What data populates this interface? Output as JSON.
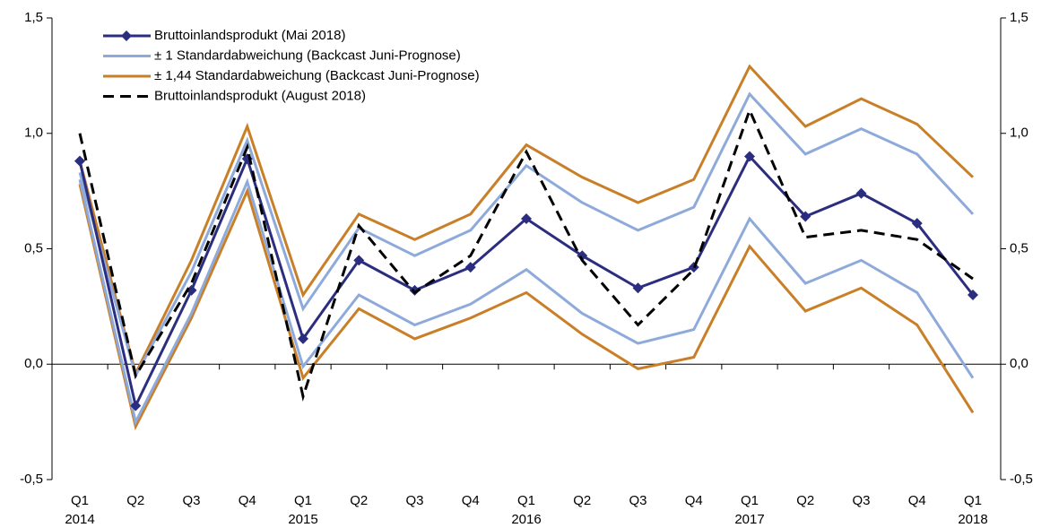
{
  "chart_data": {
    "type": "line",
    "categories": [
      "Q1",
      "Q2",
      "Q3",
      "Q4",
      "Q1",
      "Q2",
      "Q3",
      "Q4",
      "Q1",
      "Q2",
      "Q3",
      "Q4",
      "Q1",
      "Q2",
      "Q3",
      "Q4",
      "Q1"
    ],
    "year_labels": [
      "2014",
      null,
      null,
      null,
      "2015",
      null,
      null,
      null,
      "2016",
      null,
      null,
      null,
      "2017",
      null,
      null,
      null,
      "2018"
    ],
    "ylim": [
      -0.5,
      1.5
    ],
    "yticks": [
      {
        "value": -0.5,
        "label": "-0,5"
      },
      {
        "value": 0,
        "label": "0,0"
      },
      {
        "value": 0.5,
        "label": "0,5"
      },
      {
        "value": 1,
        "label": "1,0"
      },
      {
        "value": 1.5,
        "label": "1,5"
      }
    ],
    "y2lim": [
      -0.5,
      1.5
    ],
    "y2ticks": [
      {
        "value": -0.5,
        "label": "-0,5"
      },
      {
        "value": 0,
        "label": "0,0"
      },
      {
        "value": 0.5,
        "label": "0,5"
      },
      {
        "value": 1,
        "label": "1,0"
      },
      {
        "value": 1.5,
        "label": "1,5"
      }
    ],
    "series": [
      {
        "name": "Bruttoinlandsprodukt (Mai 2018)",
        "color": "#2b2e7f",
        "marker": "diamond",
        "values": [
          0.88,
          -0.18,
          0.32,
          0.89,
          0.11,
          0.45,
          0.32,
          0.42,
          0.63,
          0.47,
          0.33,
          0.42,
          0.9,
          0.64,
          0.74,
          0.61,
          0.3
        ]
      },
      {
        "name": "± 1 Standardabweichung (Backcast Juni-Prognose)",
        "color": "#8eaadb",
        "upper": [
          0.83,
          -0.05,
          0.4,
          0.97,
          0.24,
          0.59,
          0.47,
          0.58,
          0.86,
          0.7,
          0.58,
          0.68,
          1.17,
          0.91,
          1.02,
          0.91,
          0.65
        ],
        "lower": [
          0.8,
          -0.25,
          0.22,
          0.79,
          -0.01,
          0.3,
          0.17,
          0.26,
          0.41,
          0.22,
          0.09,
          0.15,
          0.63,
          0.35,
          0.45,
          0.31,
          -0.06
        ]
      },
      {
        "name": "± 1,44 Standardabweichung (Backcast Juni-Prognose)",
        "color": "#c97f28",
        "upper": [
          0.88,
          -0.04,
          0.45,
          1.03,
          0.3,
          0.65,
          0.54,
          0.65,
          0.95,
          0.81,
          0.7,
          0.8,
          1.29,
          1.03,
          1.15,
          1.04,
          0.81
        ],
        "lower": [
          0.78,
          -0.27,
          0.2,
          0.75,
          -0.06,
          0.24,
          0.11,
          0.2,
          0.31,
          0.13,
          -0.02,
          0.03,
          0.51,
          0.23,
          0.33,
          0.17,
          -0.21
        ]
      },
      {
        "name": "Bruttoinlandsprodukt (August 2018)",
        "color": "#000000",
        "dashed": true,
        "values": [
          1.0,
          -0.05,
          0.35,
          0.94,
          -0.14,
          0.6,
          0.31,
          0.47,
          0.92,
          0.45,
          0.17,
          0.41,
          1.1,
          0.55,
          0.58,
          0.54,
          0.37
        ]
      }
    ]
  }
}
